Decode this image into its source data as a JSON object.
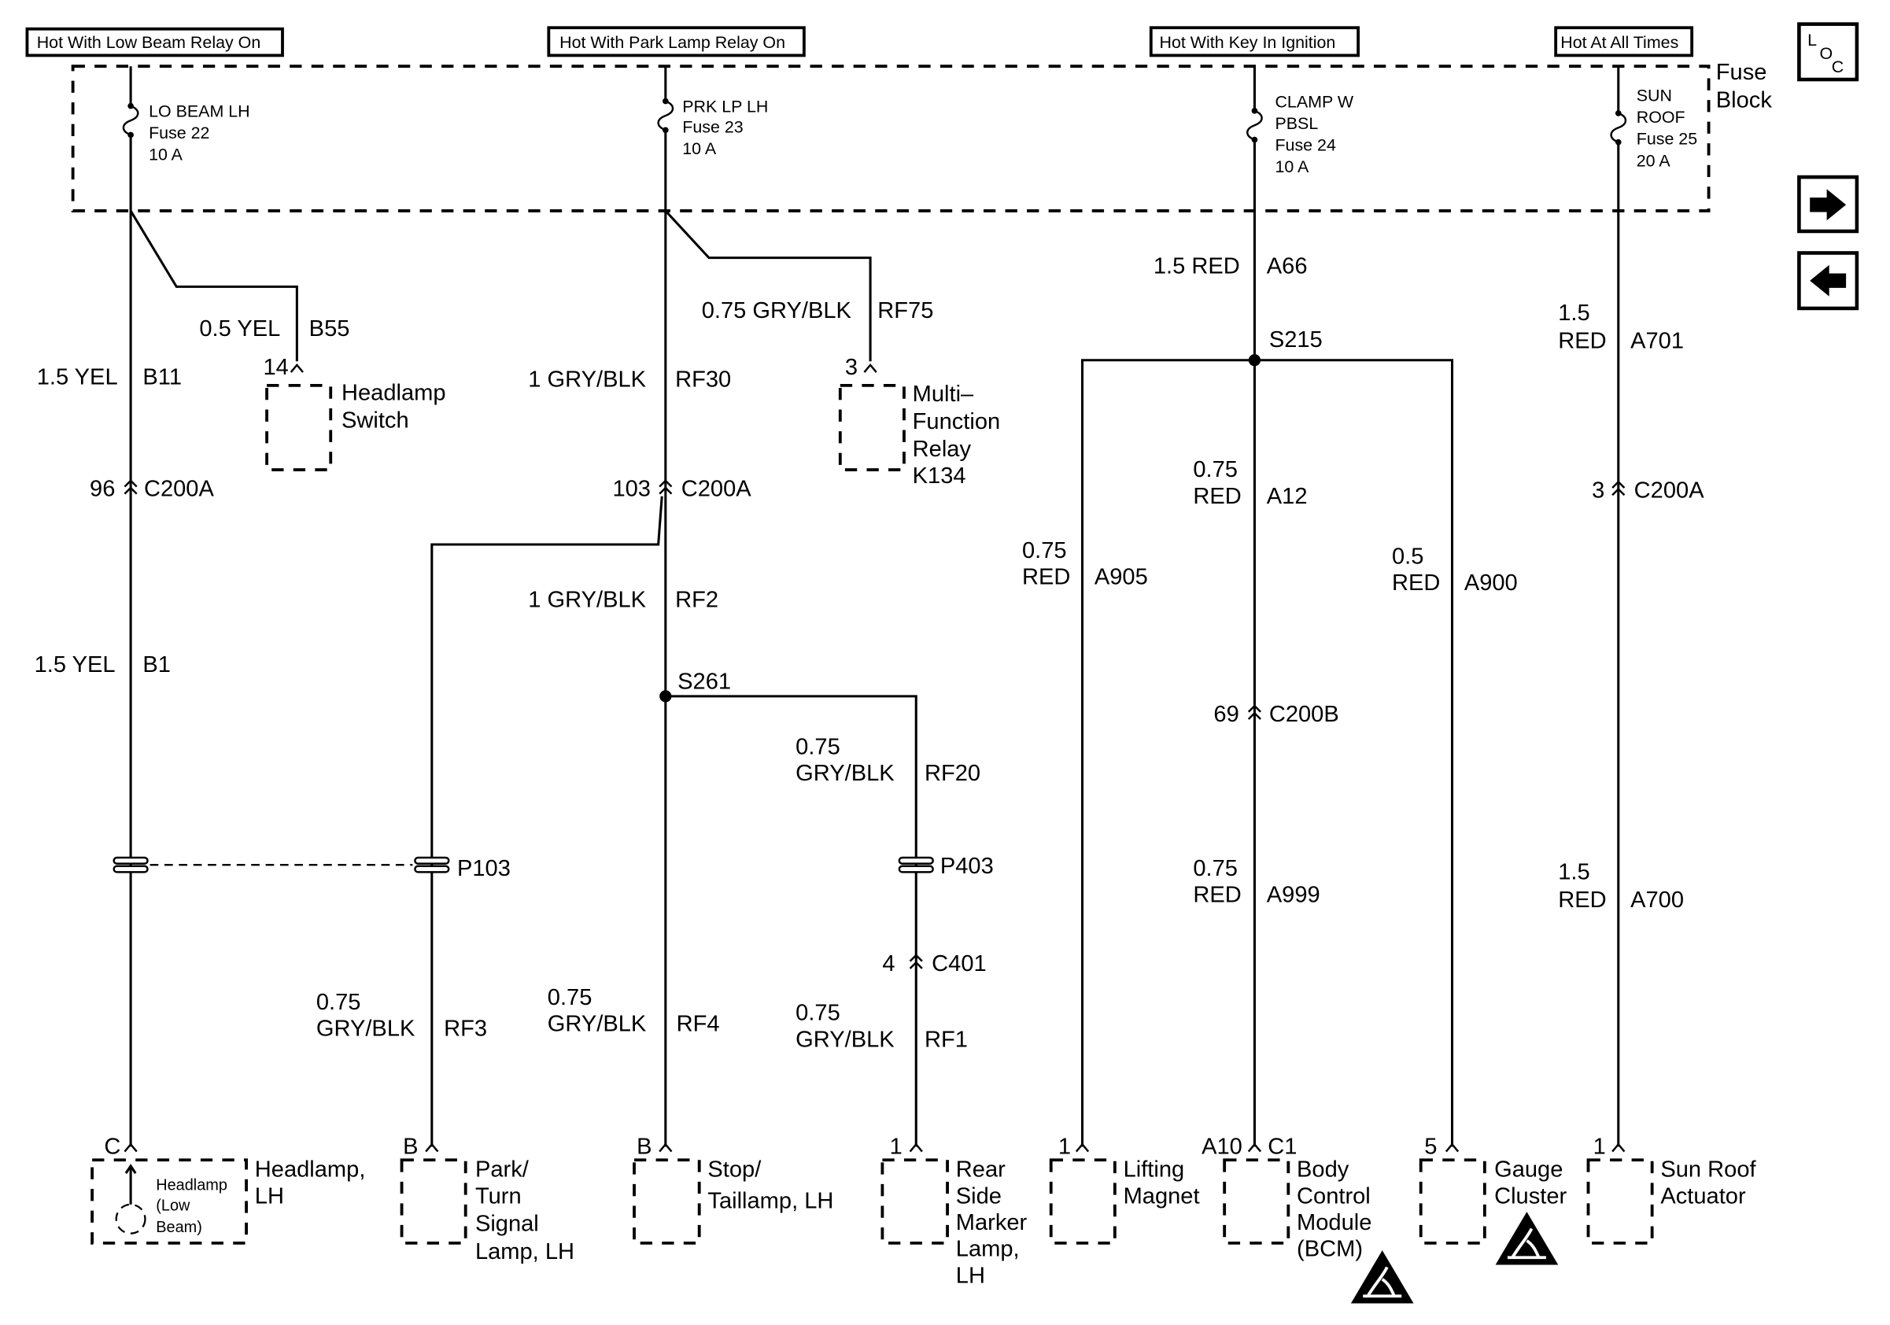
{
  "power_sources": [
    "Hot With Low Beam Relay On",
    "Hot With Park Lamp Relay On",
    "Hot With Key In Ignition",
    "Hot At All Times"
  ],
  "fuse_block": {
    "line1": "Fuse",
    "line2": "Block"
  },
  "nav": {
    "loc": {
      "l": "L",
      "o": "O",
      "c": "C"
    },
    "next_icon": "right-arrow",
    "prev_icon": "left-arrow"
  },
  "fuses": [
    {
      "lines": [
        "LO BEAM LH",
        "Fuse 22",
        "10 A"
      ]
    },
    {
      "lines": [
        "PRK LP LH",
        "Fuse 23",
        "10 A"
      ]
    },
    {
      "lines": [
        "CLAMP W",
        "PBSL",
        "Fuse 24",
        "10 A"
      ]
    },
    {
      "lines": [
        "SUN",
        "ROOF",
        "Fuse 25",
        "20 A"
      ]
    }
  ],
  "wires": {
    "b55": {
      "spec": "0.5 YEL",
      "circuit": "B55"
    },
    "b11": {
      "spec": "1.5 YEL",
      "circuit": "B11"
    },
    "b1": {
      "spec": "1.5 YEL",
      "circuit": "B1"
    },
    "rf75": {
      "spec": "0.75 GRY/BLK",
      "circuit": "RF75"
    },
    "rf30": {
      "spec": "1 GRY/BLK",
      "circuit": "RF30"
    },
    "rf2": {
      "spec": "1 GRY/BLK",
      "circuit": "RF2"
    },
    "rf3": {
      "gauge": "0.75",
      "color": "GRY/BLK",
      "circuit": "RF3"
    },
    "rf4": {
      "gauge": "0.75",
      "color": "GRY/BLK",
      "circuit": "RF4"
    },
    "rf20": {
      "gauge": "0.75",
      "color": "GRY/BLK",
      "circuit": "RF20"
    },
    "rf1": {
      "gauge": "0.75",
      "color": "GRY/BLK",
      "circuit": "RF1"
    },
    "a66": {
      "spec": "1.5 RED",
      "circuit": "A66"
    },
    "a12": {
      "gauge": "0.75",
      "color": "RED",
      "circuit": "A12"
    },
    "a905": {
      "gauge": "0.75",
      "color": "RED",
      "circuit": "A905"
    },
    "a900": {
      "gauge": "0.5",
      "color": "RED",
      "circuit": "A900"
    },
    "a999": {
      "gauge": "0.75",
      "color": "RED",
      "circuit": "A999"
    },
    "a701": {
      "gauge": "1.5",
      "color": "RED",
      "circuit": "A701"
    },
    "a700": {
      "gauge": "1.5",
      "color": "RED",
      "circuit": "A700"
    }
  },
  "connectors": {
    "c200a_96": {
      "pin": "96",
      "name": "C200A"
    },
    "c200a_103": {
      "pin": "103",
      "name": "C200A"
    },
    "c200a_3": {
      "pin": "3",
      "name": "C200A"
    },
    "c200b_69": {
      "pin": "69",
      "name": "C200B"
    },
    "c401_4": {
      "pin": "4",
      "name": "C401"
    }
  },
  "splices": {
    "s215": "S215",
    "s261": "S261"
  },
  "pass_throughs": {
    "p103": "P103",
    "p403": "P403"
  },
  "components": {
    "headlamp_switch": {
      "pin": "14",
      "lines": [
        "Headlamp",
        "Switch"
      ]
    },
    "multi_function_relay": {
      "pin": "3",
      "lines": [
        "Multi–",
        "Function",
        "Relay",
        "K134"
      ]
    },
    "headlamp_lh": {
      "pin": "C",
      "lines": [
        "Headlamp,",
        "LH"
      ],
      "inner": [
        "Headlamp",
        "(Low",
        "Beam)"
      ]
    },
    "park_turn_lamp": {
      "pin": "B",
      "lines": [
        "Park/",
        "Turn",
        "Signal",
        "Lamp, LH"
      ]
    },
    "stop_taillamp": {
      "pin": "B",
      "lines": [
        "Stop/",
        "Taillamp, LH"
      ]
    },
    "rear_side_marker": {
      "pin": "1",
      "lines": [
        "Rear",
        "Side",
        "Marker",
        "Lamp,",
        "LH"
      ]
    },
    "lifting_magnet": {
      "pin": "1",
      "lines": [
        "Lifting",
        "Magnet"
      ]
    },
    "bcm": {
      "pin_left": "A10",
      "pin_right": "C1",
      "lines": [
        "Body",
        "Control",
        "Module",
        "(BCM)"
      ]
    },
    "gauge_cluster": {
      "pin": "5",
      "lines": [
        "Gauge",
        "Cluster"
      ]
    },
    "sun_roof_actuator": {
      "pin": "1",
      "lines": [
        "Sun Roof",
        "Actuator"
      ]
    }
  }
}
